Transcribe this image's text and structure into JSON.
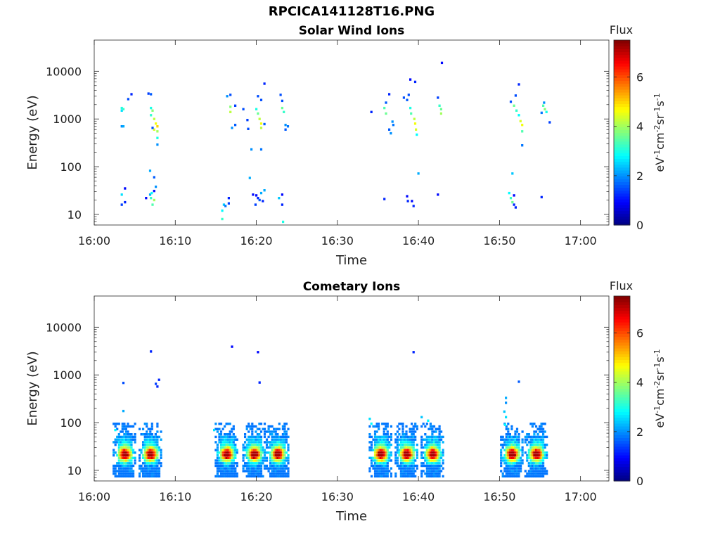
{
  "figure_title": "RPCICA141128T16.PNG",
  "chart_data": [
    {
      "type": "heatmap",
      "title": "Solar Wind Ions",
      "xlabel": "Time",
      "ylabel": "Energy (eV)",
      "x_tick_labels": [
        "16:00",
        "16:10",
        "16:20",
        "16:30",
        "16:40",
        "16:50",
        "17:00"
      ],
      "x_tick_minutes": [
        0,
        10,
        20,
        30,
        40,
        50,
        60
      ],
      "xlim_minutes": [
        0,
        63.5
      ],
      "y_scale": "log",
      "y_tick_labels": [
        "10",
        "100",
        "1000",
        "10000"
      ],
      "y_tick_values": [
        10,
        100,
        1000,
        10000
      ],
      "ylim": [
        6,
        45000
      ],
      "colorbar": {
        "title": "Flux",
        "label": "eV-1cm-2sr-1s-1",
        "ticks": [
          "0",
          "2",
          "4",
          "6"
        ],
        "range": [
          0,
          7.5
        ],
        "colormap": "jet"
      },
      "data_points": [
        [
          3.4,
          1700,
          3.0
        ],
        [
          3.4,
          1500,
          2.6
        ],
        [
          3.6,
          1600,
          3.2
        ],
        [
          3.4,
          700,
          2.0
        ],
        [
          3.6,
          700,
          2.2
        ],
        [
          4.2,
          2600,
          1.5
        ],
        [
          4.6,
          3300,
          1.2
        ],
        [
          6.7,
          3400,
          1.4
        ],
        [
          7.0,
          3300,
          1.6
        ],
        [
          7.0,
          1700,
          3.0
        ],
        [
          7.2,
          1500,
          3.8
        ],
        [
          7.0,
          1200,
          3.2
        ],
        [
          7.4,
          1000,
          4.2
        ],
        [
          7.6,
          800,
          4.6
        ],
        [
          7.8,
          700,
          5.0
        ],
        [
          7.4,
          600,
          4.4
        ],
        [
          7.8,
          550,
          4.0
        ],
        [
          7.2,
          650,
          1.5
        ],
        [
          7.8,
          400,
          3.0
        ],
        [
          7.8,
          290,
          2.0
        ],
        [
          16.4,
          3000,
          2.0
        ],
        [
          16.8,
          3200,
          1.5
        ],
        [
          16.8,
          1800,
          3.8
        ],
        [
          16.8,
          1400,
          4.2
        ],
        [
          17.4,
          1900,
          1.4
        ],
        [
          17.4,
          750,
          1.6
        ],
        [
          17.0,
          650,
          2.0
        ],
        [
          18.4,
          1600,
          1.5
        ],
        [
          18.9,
          950,
          1.4
        ],
        [
          19.0,
          620,
          1.5
        ],
        [
          20.0,
          1600,
          3.0
        ],
        [
          20.2,
          1300,
          3.6
        ],
        [
          20.4,
          1000,
          4.2
        ],
        [
          20.6,
          800,
          4.6
        ],
        [
          20.6,
          650,
          4.2
        ],
        [
          20.2,
          3000,
          1.5
        ],
        [
          20.6,
          2500,
          1.5
        ],
        [
          21.0,
          5500,
          1.2
        ],
        [
          19.4,
          230,
          2.0
        ],
        [
          20.6,
          230,
          1.8
        ],
        [
          21.0,
          780,
          1.6
        ],
        [
          23.0,
          3200,
          1.5
        ],
        [
          23.2,
          2400,
          1.5
        ],
        [
          23.2,
          1700,
          3.6
        ],
        [
          23.4,
          1400,
          3.2
        ],
        [
          23.6,
          750,
          2.0
        ],
        [
          23.9,
          700,
          1.8
        ],
        [
          23.6,
          600,
          1.6
        ],
        [
          36.0,
          2200,
          1.6
        ],
        [
          35.8,
          1700,
          3.4
        ],
        [
          36.0,
          1300,
          3.6
        ],
        [
          36.4,
          3300,
          1.2
        ],
        [
          36.8,
          880,
          2.0
        ],
        [
          36.9,
          750,
          1.8
        ],
        [
          36.4,
          600,
          1.6
        ],
        [
          36.6,
          500,
          2.0
        ],
        [
          34.2,
          1400,
          1.2
        ],
        [
          38.8,
          3200,
          1.5
        ],
        [
          39.0,
          1700,
          3.0
        ],
        [
          39.1,
          1300,
          3.4
        ],
        [
          39.5,
          1000,
          4.2
        ],
        [
          39.6,
          800,
          4.6
        ],
        [
          39.7,
          600,
          4.4
        ],
        [
          39.8,
          470,
          2.8
        ],
        [
          38.2,
          2800,
          1.5
        ],
        [
          38.6,
          2500,
          1.6
        ],
        [
          39.0,
          6700,
          1.0
        ],
        [
          39.6,
          6000,
          1.2
        ],
        [
          42.4,
          2800,
          1.4
        ],
        [
          42.6,
          1900,
          3.2
        ],
        [
          42.8,
          1600,
          3.6
        ],
        [
          42.8,
          1300,
          4.0
        ],
        [
          42.9,
          15000,
          1.0
        ],
        [
          40.0,
          72,
          2.2
        ],
        [
          52.4,
          5300,
          1.2
        ],
        [
          52.0,
          3100,
          1.5
        ],
        [
          51.8,
          1900,
          3.6
        ],
        [
          52.1,
          1500,
          3.2
        ],
        [
          52.4,
          1200,
          2.8
        ],
        [
          52.6,
          900,
          4.4
        ],
        [
          52.8,
          750,
          4.6
        ],
        [
          52.8,
          550,
          3.4
        ],
        [
          52.8,
          280,
          1.8
        ],
        [
          51.4,
          2300,
          1.5
        ],
        [
          55.4,
          1900,
          3.4
        ],
        [
          55.6,
          1600,
          3.8
        ],
        [
          55.8,
          1400,
          3.0
        ],
        [
          55.5,
          2200,
          2.0
        ],
        [
          56.2,
          850,
          1.4
        ],
        [
          55.2,
          1350,
          1.8
        ],
        [
          3.4,
          26,
          2.6
        ],
        [
          3.4,
          16,
          1.4
        ],
        [
          3.8,
          35,
          1.0
        ],
        [
          3.8,
          18,
          1.2
        ],
        [
          6.4,
          22,
          1.0
        ],
        [
          6.9,
          26,
          2.2
        ],
        [
          7.0,
          22,
          3.2
        ],
        [
          7.4,
          20,
          4.0
        ],
        [
          7.2,
          16,
          3.4
        ],
        [
          7.4,
          31,
          1.0
        ],
        [
          7.6,
          38,
          2.0
        ],
        [
          7.4,
          60,
          1.6
        ],
        [
          6.9,
          82,
          2.2
        ],
        [
          7.1,
          28,
          2.8
        ],
        [
          15.8,
          12,
          2.8
        ],
        [
          15.8,
          8,
          3.2
        ],
        [
          16.0,
          16,
          2.4
        ],
        [
          16.2,
          15,
          1.8
        ],
        [
          16.6,
          22,
          1.2
        ],
        [
          16.6,
          17,
          1.4
        ],
        [
          19.2,
          58,
          2.2
        ],
        [
          19.6,
          26,
          1.0
        ],
        [
          20.0,
          25,
          1.0
        ],
        [
          20.2,
          22,
          1.2
        ],
        [
          20.6,
          28,
          2.2
        ],
        [
          20.4,
          20,
          1.6
        ],
        [
          21.0,
          32,
          2.2
        ],
        [
          20.8,
          19,
          1.2
        ],
        [
          19.9,
          16,
          1.4
        ],
        [
          22.8,
          22,
          2.4
        ],
        [
          23.2,
          26,
          1.0
        ],
        [
          23.2,
          16,
          1.2
        ],
        [
          23.3,
          7,
          3.0
        ],
        [
          35.8,
          21,
          1.2
        ],
        [
          38.6,
          24,
          1.0
        ],
        [
          38.7,
          19,
          1.2
        ],
        [
          39.2,
          19,
          1.0
        ],
        [
          39.4,
          15,
          1.2
        ],
        [
          42.4,
          26,
          1.0
        ],
        [
          51.2,
          28,
          2.8
        ],
        [
          51.4,
          22,
          3.2
        ],
        [
          51.6,
          18,
          3.6
        ],
        [
          51.8,
          16,
          1.2
        ],
        [
          52.0,
          14,
          1.2
        ],
        [
          51.8,
          25,
          1.0
        ],
        [
          55.2,
          23,
          1.2
        ],
        [
          51.6,
          72,
          2.4
        ]
      ]
    },
    {
      "type": "heatmap",
      "title": "Cometary Ions",
      "xlabel": "Time",
      "ylabel": "Energy (eV)",
      "x_tick_labels": [
        "16:00",
        "16:10",
        "16:20",
        "16:30",
        "16:40",
        "16:50",
        "17:00"
      ],
      "x_tick_minutes": [
        0,
        10,
        20,
        30,
        40,
        50,
        60
      ],
      "xlim_minutes": [
        0,
        63.5
      ],
      "y_scale": "log",
      "y_tick_labels": [
        "10",
        "100",
        "1000",
        "10000"
      ],
      "y_tick_values": [
        10,
        100,
        1000,
        10000
      ],
      "ylim": [
        6,
        45000
      ],
      "colorbar": {
        "title": "Flux",
        "label": "eV-1cm-2sr-1s-1",
        "ticks": [
          "0",
          "2",
          "4",
          "6"
        ],
        "range": [
          0,
          7.5
        ],
        "colormap": "jet"
      },
      "bursts_minutes": [
        3.8,
        7.0,
        16.4,
        19.8,
        22.7,
        35.4,
        38.6,
        41.8,
        51.6,
        54.6
      ],
      "isolated_points": [
        [
          3.6,
          680,
          1.5
        ],
        [
          3.6,
          175,
          2.2
        ],
        [
          7.0,
          3100,
          1.2
        ],
        [
          7.6,
          650,
          1.4
        ],
        [
          7.8,
          570,
          1.2
        ],
        [
          8.0,
          790,
          1.2
        ],
        [
          17.0,
          3900,
          1.0
        ],
        [
          20.2,
          3000,
          1.0
        ],
        [
          20.4,
          690,
          1.2
        ],
        [
          39.4,
          3000,
          1.2
        ],
        [
          52.4,
          720,
          1.6
        ],
        [
          50.8,
          330,
          2.2
        ],
        [
          50.8,
          260,
          2.0
        ],
        [
          50.6,
          170,
          2.4
        ],
        [
          50.8,
          130,
          2.6
        ],
        [
          50.7,
          90,
          2.8
        ],
        [
          14.8,
          70,
          2.6
        ],
        [
          2.6,
          70,
          2.8
        ],
        [
          34.0,
          120,
          2.6
        ],
        [
          34.2,
          95,
          2.8
        ],
        [
          41.2,
          110,
          2.8
        ],
        [
          40.4,
          130,
          2.4
        ]
      ]
    }
  ]
}
